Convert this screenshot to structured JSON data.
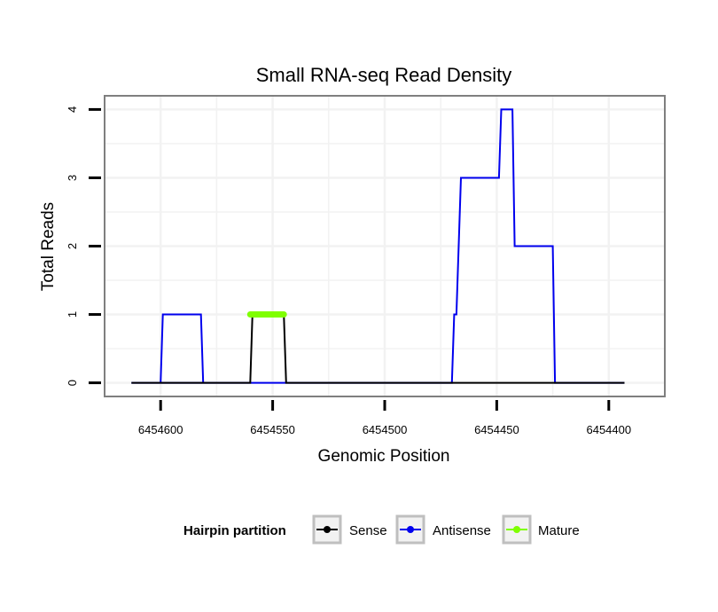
{
  "chart_data": {
    "type": "line",
    "title": "Small RNA-seq Read Density",
    "xlabel": "Genomic Position",
    "ylabel": "Total Reads",
    "x_reversed": true,
    "xlim": [
      6454625,
      6454375
    ],
    "ylim": [
      -0.2,
      4.2
    ],
    "xticks": [
      6454600,
      6454550,
      6454500,
      6454450,
      6454400
    ],
    "xtick_labels": [
      "6454600",
      "6454550",
      "6454500",
      "6454450",
      "6454400"
    ],
    "yticks": [
      0,
      1,
      2,
      3,
      4
    ],
    "ytick_labels": [
      "0",
      "1",
      "2",
      "3",
      "4"
    ],
    "grid": true,
    "legend": {
      "title": "Hairpin partition",
      "position": "bottom",
      "entries": [
        "Sense",
        "Antisense",
        "Mature"
      ]
    },
    "series": [
      {
        "name": "Sense",
        "color": "#000000",
        "x": [
          6454613,
          6454560,
          6454559,
          6454545,
          6454544,
          6454393
        ],
        "y": [
          0,
          0,
          1,
          1,
          0,
          0
        ]
      },
      {
        "name": "Antisense",
        "color": "#0000ee",
        "x": [
          6454560,
          6454560,
          6454545,
          6454545,
          6454613,
          6454600,
          6454599,
          6454582,
          6454581,
          6454560,
          6454470,
          6454469,
          6454468,
          6454466,
          6454465,
          6454449,
          6454448,
          6454443,
          6454442,
          6454425,
          6454424,
          6454393
        ],
        "y": [
          0,
          0,
          0,
          0,
          0,
          0,
          1,
          1,
          0,
          0,
          0,
          1,
          1,
          3,
          3,
          3,
          4,
          4,
          2,
          2,
          0,
          0
        ]
      },
      {
        "name": "Mature",
        "color": "#7fff00",
        "x": [
          6454560,
          6454545
        ],
        "y": [
          1,
          1
        ]
      }
    ]
  }
}
